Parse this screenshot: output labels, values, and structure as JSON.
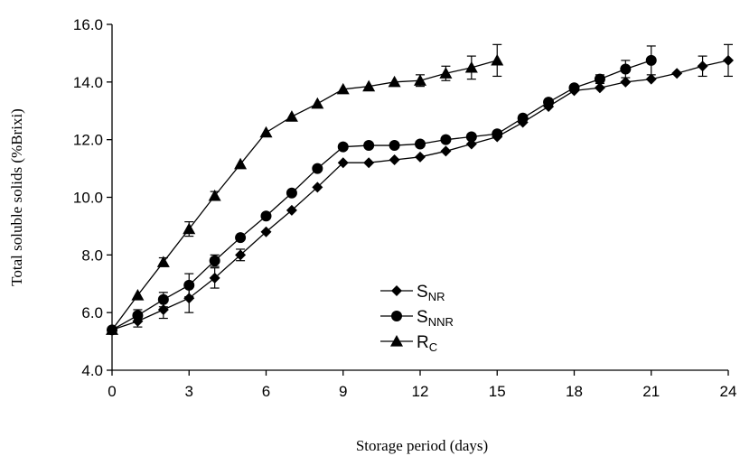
{
  "chart_data": {
    "type": "line",
    "title": "",
    "xlabel": "Storage period (days)",
    "ylabel": "Total soluble solids (%Brixi)",
    "xlim": [
      0,
      24
    ],
    "ylim": [
      4.0,
      16.0
    ],
    "x_ticks": [
      "0",
      "3",
      "6",
      "9",
      "12",
      "15",
      "18",
      "21",
      "24"
    ],
    "y_ticks": [
      "4.0",
      "6.0",
      "8.0",
      "10.0",
      "12.0",
      "14.0",
      "16.0"
    ],
    "grid": false,
    "legend_position": "bottom-center",
    "series": [
      {
        "name_main": "S",
        "name_sub": "NR",
        "marker": "diamond",
        "x": [
          0,
          1,
          2,
          3,
          4,
          5,
          6,
          7,
          8,
          9,
          10,
          11,
          12,
          13,
          14,
          15,
          16,
          17,
          18,
          19,
          20,
          21,
          22,
          23,
          24
        ],
        "y": [
          5.4,
          5.7,
          6.1,
          6.5,
          7.2,
          8.0,
          8.8,
          9.55,
          10.35,
          11.2,
          11.2,
          11.3,
          11.4,
          11.6,
          11.85,
          12.1,
          12.6,
          13.15,
          13.7,
          13.8,
          14.0,
          14.1,
          14.3,
          14.55,
          14.75
        ],
        "err": [
          0,
          0.2,
          0.3,
          0.5,
          0.35,
          0.2,
          0,
          0,
          0,
          0,
          0,
          0,
          0,
          0,
          0,
          0,
          0,
          0,
          0,
          0,
          0,
          0,
          0,
          0.35,
          0.55
        ]
      },
      {
        "name_main": "S",
        "name_sub": "NNR",
        "marker": "circle",
        "x": [
          0,
          1,
          2,
          3,
          4,
          5,
          6,
          7,
          8,
          9,
          10,
          11,
          12,
          13,
          14,
          15,
          16,
          17,
          18,
          19,
          20,
          21
        ],
        "y": [
          5.4,
          5.9,
          6.45,
          6.95,
          7.8,
          8.6,
          9.35,
          10.15,
          11.0,
          11.75,
          11.8,
          11.8,
          11.85,
          12.0,
          12.1,
          12.2,
          12.75,
          13.3,
          13.8,
          14.1,
          14.45,
          14.75
        ],
        "err": [
          0,
          0.2,
          0.25,
          0.4,
          0.2,
          0,
          0,
          0,
          0,
          0,
          0,
          0,
          0,
          0,
          0,
          0,
          0,
          0,
          0,
          0.15,
          0.3,
          0.5
        ]
      },
      {
        "name_main": "R",
        "name_sub": "C",
        "marker": "triangle",
        "x": [
          0,
          1,
          2,
          3,
          4,
          5,
          6,
          7,
          8,
          9,
          10,
          11,
          12,
          13,
          14,
          15
        ],
        "y": [
          5.4,
          6.6,
          7.75,
          8.9,
          10.05,
          11.15,
          12.25,
          12.8,
          13.25,
          13.75,
          13.85,
          14.0,
          14.05,
          14.3,
          14.5,
          14.75
        ],
        "err": [
          0,
          0,
          0.15,
          0.25,
          0.15,
          0,
          0,
          0,
          0,
          0,
          0,
          0,
          0.2,
          0.25,
          0.4,
          0.55
        ]
      }
    ]
  }
}
